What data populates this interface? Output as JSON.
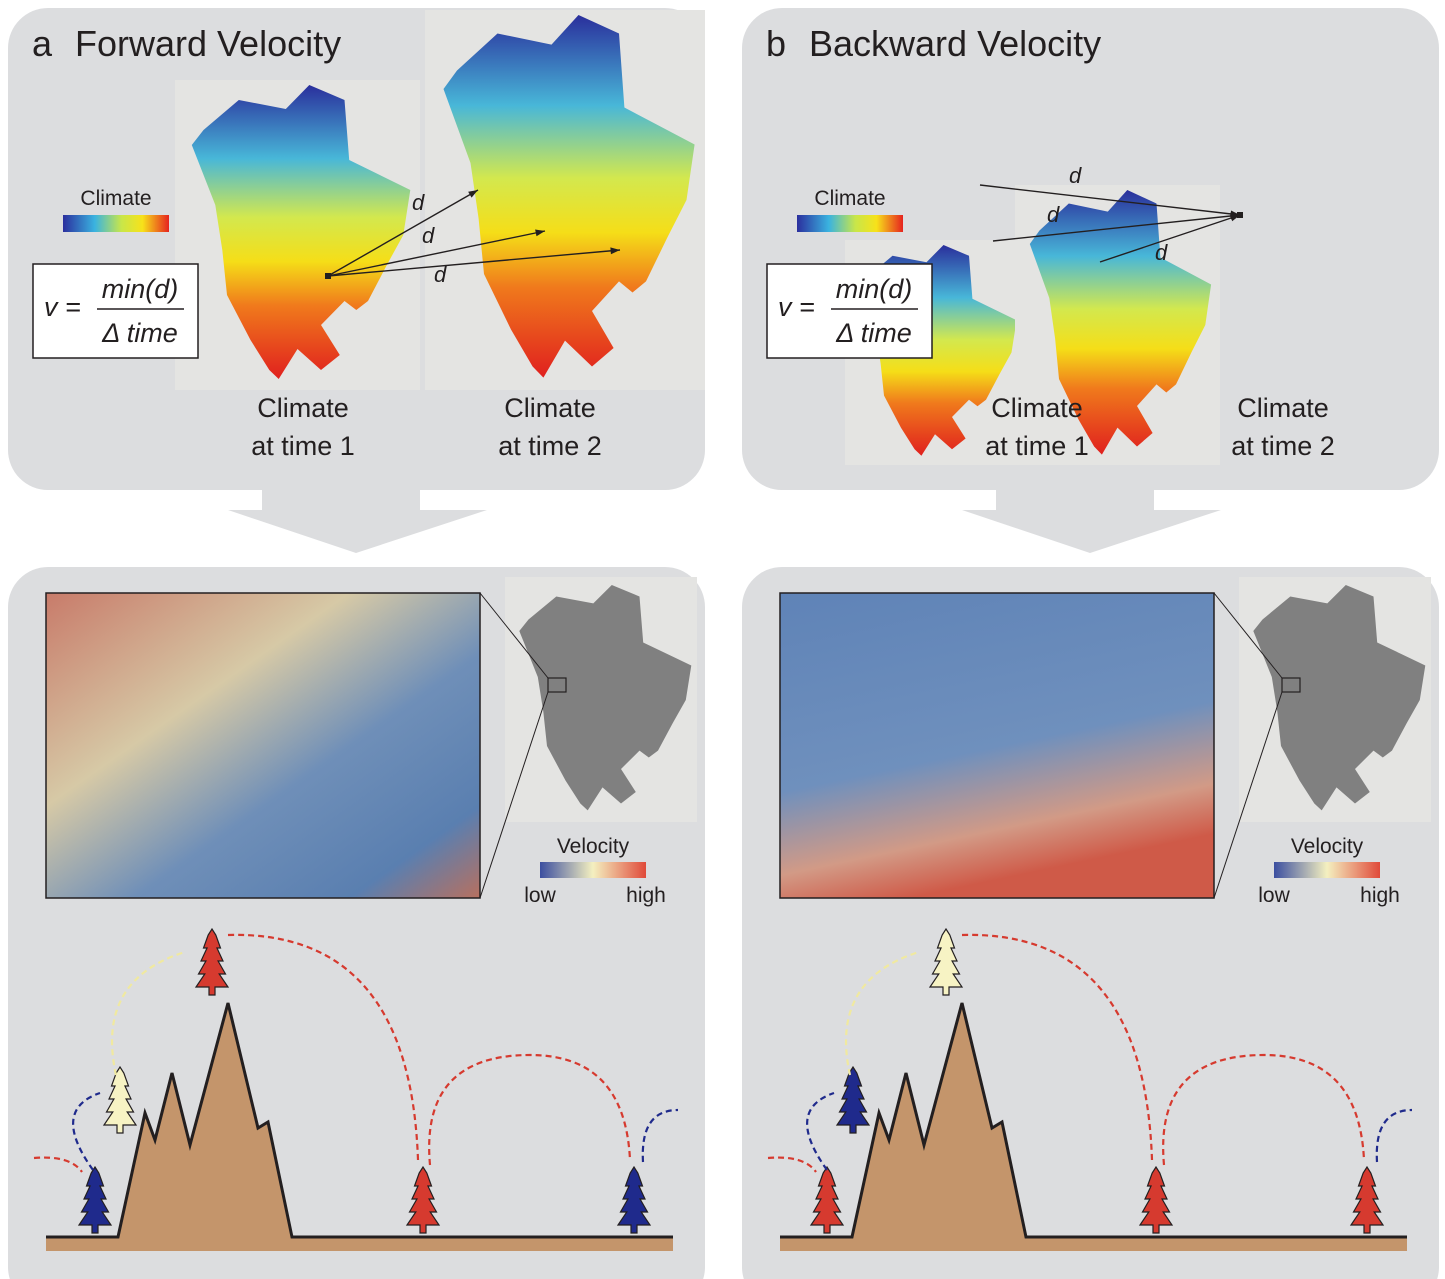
{
  "panels": [
    {
      "letter": "a",
      "title": "Forward Velocity",
      "legend_label": "Climate",
      "formula": {
        "lhs": "v =",
        "numerator": "min(d)",
        "denominator": "Δ time"
      },
      "distance_labels": [
        "d",
        "d",
        "d"
      ],
      "map_labels": [
        [
          "Climate",
          "at time 1"
        ],
        [
          "Climate",
          "at time 2"
        ]
      ],
      "velocity_legend": {
        "title": "Velocity",
        "low": "low",
        "high": "high"
      }
    },
    {
      "letter": "b",
      "title": "Backward Velocity",
      "legend_label": "Climate",
      "formula": {
        "lhs": "v =",
        "numerator": "min(d)",
        "denominator": "Δ time"
      },
      "distance_labels": [
        "d",
        "d",
        "d"
      ],
      "map_labels": [
        [
          "Climate",
          "at time 1"
        ],
        [
          "Climate",
          "at time 2"
        ]
      ],
      "velocity_legend": {
        "title": "Velocity",
        "low": "low",
        "high": "high"
      }
    }
  ]
}
